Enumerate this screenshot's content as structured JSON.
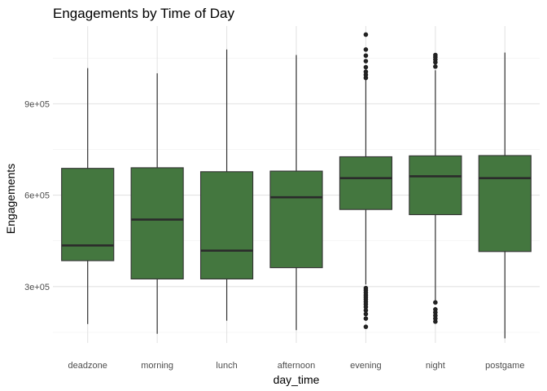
{
  "chart_data": {
    "type": "boxplot",
    "title": "Engagements by Time of Day",
    "xlabel": "day_time",
    "ylabel": "Engagements",
    "categories": [
      "deadzone",
      "morning",
      "lunch",
      "afternoon",
      "evening",
      "night",
      "postgame"
    ],
    "yticks": [
      300000,
      600000,
      900000
    ],
    "ytick_labels": [
      "3e+05",
      "6e+05",
      "9e+05"
    ],
    "ylim": [
      115000,
      1155000
    ],
    "grid": true,
    "fill_color": "#44773f",
    "boxes": [
      {
        "category": "deadzone",
        "whisker_low": 177000,
        "q1": 385000,
        "median": 435000,
        "q3": 688000,
        "whisker_high": 1017000,
        "outliers": []
      },
      {
        "category": "morning",
        "whisker_low": 145000,
        "q1": 325000,
        "median": 520000,
        "q3": 690000,
        "whisker_high": 1000000,
        "outliers": []
      },
      {
        "category": "lunch",
        "whisker_low": 188000,
        "q1": 325000,
        "median": 418000,
        "q3": 677000,
        "whisker_high": 1078000,
        "outliers": []
      },
      {
        "category": "afternoon",
        "whisker_low": 157000,
        "q1": 362000,
        "median": 593000,
        "q3": 679000,
        "whisker_high": 1060000,
        "outliers": []
      },
      {
        "category": "evening",
        "whisker_low": 307000,
        "q1": 553000,
        "median": 656000,
        "q3": 726000,
        "whisker_high": 979000,
        "outliers": [
          1127000,
          1078000,
          1058000,
          1040000,
          1020000,
          1005000,
          995000,
          985000,
          295000,
          288000,
          280000,
          272000,
          265000,
          258000,
          250000,
          242000,
          233000,
          222000,
          210000,
          195000,
          168000
        ]
      },
      {
        "category": "night",
        "whisker_low": 252000,
        "q1": 536000,
        "median": 662000,
        "q3": 729000,
        "whisker_high": 1010000,
        "outliers": [
          1060000,
          1053000,
          1045000,
          1036000,
          1022000,
          248000,
          225000,
          215000,
          205000,
          195000,
          185000
        ]
      },
      {
        "category": "postgame",
        "whisker_low": 130000,
        "q1": 415000,
        "median": 656000,
        "q3": 730000,
        "whisker_high": 1068000,
        "outliers": []
      }
    ]
  }
}
